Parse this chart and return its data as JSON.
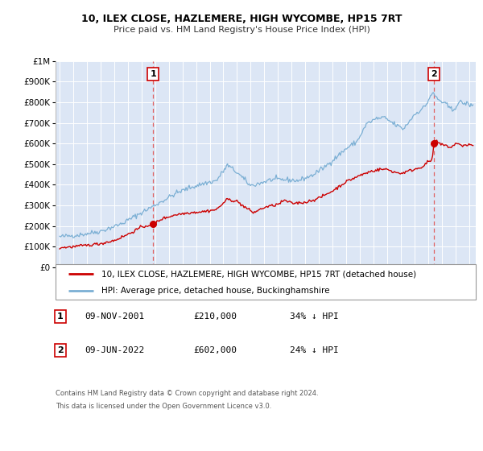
{
  "title": "10, ILEX CLOSE, HAZLEMERE, HIGH WYCOMBE, HP15 7RT",
  "subtitle": "Price paid vs. HM Land Registry's House Price Index (HPI)",
  "plot_bg_color": "#dce6f5",
  "sale1_date_num": 2001.86,
  "sale1_price": 210000,
  "sale1_label": "09-NOV-2001",
  "sale1_hpi_pct": "34% ↓ HPI",
  "sale2_date_num": 2022.44,
  "sale2_price": 602000,
  "sale2_label": "09-JUN-2022",
  "sale2_hpi_pct": "24% ↓ HPI",
  "red_line_color": "#cc0000",
  "blue_line_color": "#7bafd4",
  "marker_color": "#cc0000",
  "vline_color": "#e06060",
  "ylim": [
    0,
    1000000
  ],
  "xlim_start": 1994.7,
  "xlim_end": 2025.5,
  "legend_label_red": "10, ILEX CLOSE, HAZLEMERE, HIGH WYCOMBE, HP15 7RT (detached house)",
  "legend_label_blue": "HPI: Average price, detached house, Buckinghamshire",
  "footnote1": "Contains HM Land Registry data © Crown copyright and database right 2024.",
  "footnote2": "This data is licensed under the Open Government Licence v3.0.",
  "yticks": [
    0,
    100000,
    200000,
    300000,
    400000,
    500000,
    600000,
    700000,
    800000,
    900000,
    1000000
  ],
  "ytick_labels": [
    "£0",
    "£100K",
    "£200K",
    "£300K",
    "£400K",
    "£500K",
    "£600K",
    "£700K",
    "£800K",
    "£900K",
    "£1M"
  ],
  "xticks": [
    1995,
    1996,
    1997,
    1998,
    1999,
    2000,
    2001,
    2002,
    2003,
    2004,
    2005,
    2006,
    2007,
    2008,
    2009,
    2010,
    2011,
    2012,
    2013,
    2014,
    2015,
    2016,
    2017,
    2018,
    2019,
    2020,
    2021,
    2022,
    2023,
    2024,
    2025
  ]
}
